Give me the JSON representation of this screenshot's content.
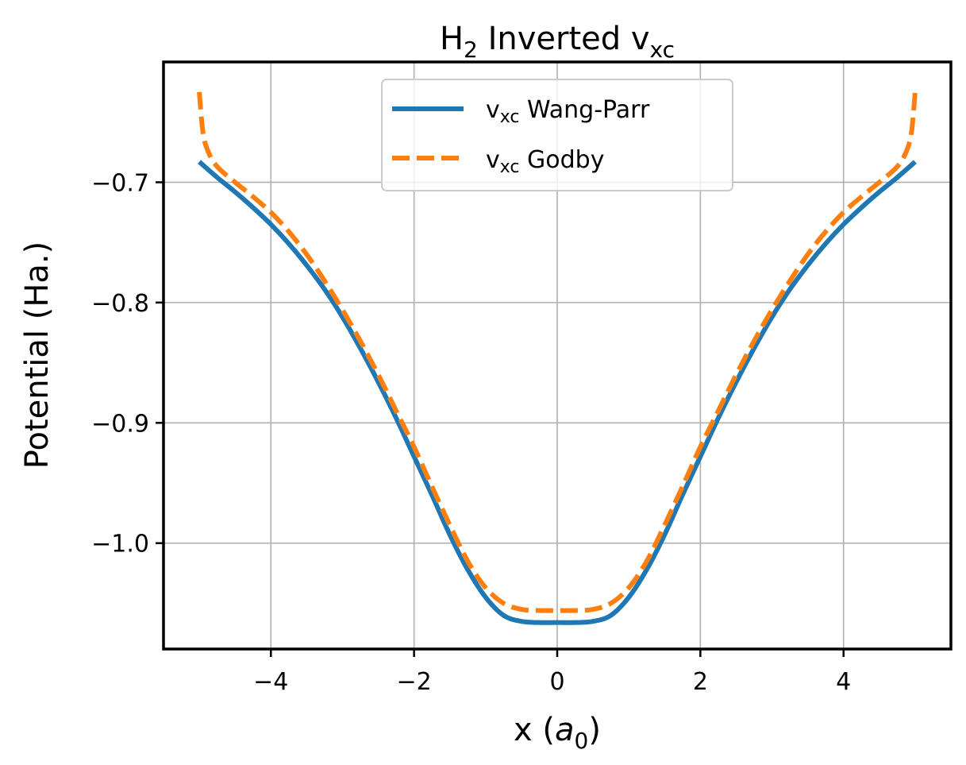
{
  "chart_data": {
    "type": "line",
    "title": {
      "main": "H",
      "sub": "2",
      "rest": " Inverted v",
      "rest_sub": "xc"
    },
    "xlabel": {
      "prefix": "x (",
      "var": "a",
      "var_sub": "0",
      "suffix": ")"
    },
    "ylabel": "Potential (Ha.)",
    "xlim": [
      -5.5,
      5.5
    ],
    "ylim": [
      -1.088,
      -0.6
    ],
    "xticks": [
      -4,
      -2,
      0,
      2,
      4
    ],
    "xtick_labels": [
      "−4",
      "−2",
      "0",
      "2",
      "4"
    ],
    "yticks": [
      -1.0,
      -0.9,
      -0.8,
      -0.7
    ],
    "ytick_labels": [
      "−1.0",
      "−0.9",
      "−0.8",
      "−0.7"
    ],
    "grid": true,
    "legend_position": "upper-center",
    "series": [
      {
        "name": "v",
        "name_sub": "xc",
        "name_rest": " Wang-Parr",
        "color": "#1f77b4",
        "style": "solid",
        "x": [
          -5.0,
          -4.75,
          -4.5,
          -4.25,
          -4.0,
          -3.75,
          -3.5,
          -3.25,
          -3.0,
          -2.75,
          -2.5,
          -2.25,
          -2.0,
          -1.75,
          -1.5,
          -1.25,
          -1.0,
          -0.75,
          -0.5,
          -0.25,
          0.0,
          0.25,
          0.5,
          0.75,
          1.0,
          1.25,
          1.5,
          1.75,
          2.0,
          2.25,
          2.5,
          2.75,
          3.0,
          3.25,
          3.5,
          3.75,
          4.0,
          4.25,
          4.5,
          4.75,
          5.0
        ],
        "y": [
          -0.683,
          -0.696,
          -0.708,
          -0.721,
          -0.735,
          -0.751,
          -0.769,
          -0.789,
          -0.812,
          -0.838,
          -0.866,
          -0.896,
          -0.928,
          -0.96,
          -0.993,
          -1.022,
          -1.045,
          -1.06,
          -1.065,
          -1.066,
          -1.066,
          -1.066,
          -1.065,
          -1.06,
          -1.045,
          -1.022,
          -0.993,
          -0.96,
          -0.928,
          -0.896,
          -0.866,
          -0.838,
          -0.812,
          -0.789,
          -0.769,
          -0.751,
          -0.735,
          -0.721,
          -0.708,
          -0.696,
          -0.683
        ]
      },
      {
        "name": "v",
        "name_sub": "xc",
        "name_rest": " Godby",
        "color": "#ff7f0e",
        "style": "dashed",
        "x": [
          -5.0,
          -4.95,
          -4.88,
          -4.75,
          -4.5,
          -4.25,
          -4.0,
          -3.75,
          -3.5,
          -3.25,
          -3.0,
          -2.75,
          -2.5,
          -2.25,
          -2.0,
          -1.75,
          -1.5,
          -1.25,
          -1.0,
          -0.75,
          -0.5,
          -0.25,
          0.0,
          0.25,
          0.5,
          0.75,
          1.0,
          1.25,
          1.5,
          1.75,
          2.0,
          2.25,
          2.5,
          2.75,
          3.0,
          3.25,
          3.5,
          3.75,
          4.0,
          4.25,
          4.5,
          4.75,
          4.88,
          4.95,
          5.0
        ],
        "y": [
          -0.625,
          -0.658,
          -0.674,
          -0.687,
          -0.7,
          -0.712,
          -0.725,
          -0.741,
          -0.76,
          -0.782,
          -0.806,
          -0.832,
          -0.86,
          -0.89,
          -0.92,
          -0.953,
          -0.985,
          -1.015,
          -1.037,
          -1.05,
          -1.055,
          -1.056,
          -1.056,
          -1.056,
          -1.055,
          -1.05,
          -1.037,
          -1.015,
          -0.985,
          -0.953,
          -0.92,
          -0.89,
          -0.86,
          -0.832,
          -0.806,
          -0.782,
          -0.76,
          -0.741,
          -0.725,
          -0.712,
          -0.7,
          -0.687,
          -0.674,
          -0.658,
          -0.625
        ]
      }
    ]
  }
}
